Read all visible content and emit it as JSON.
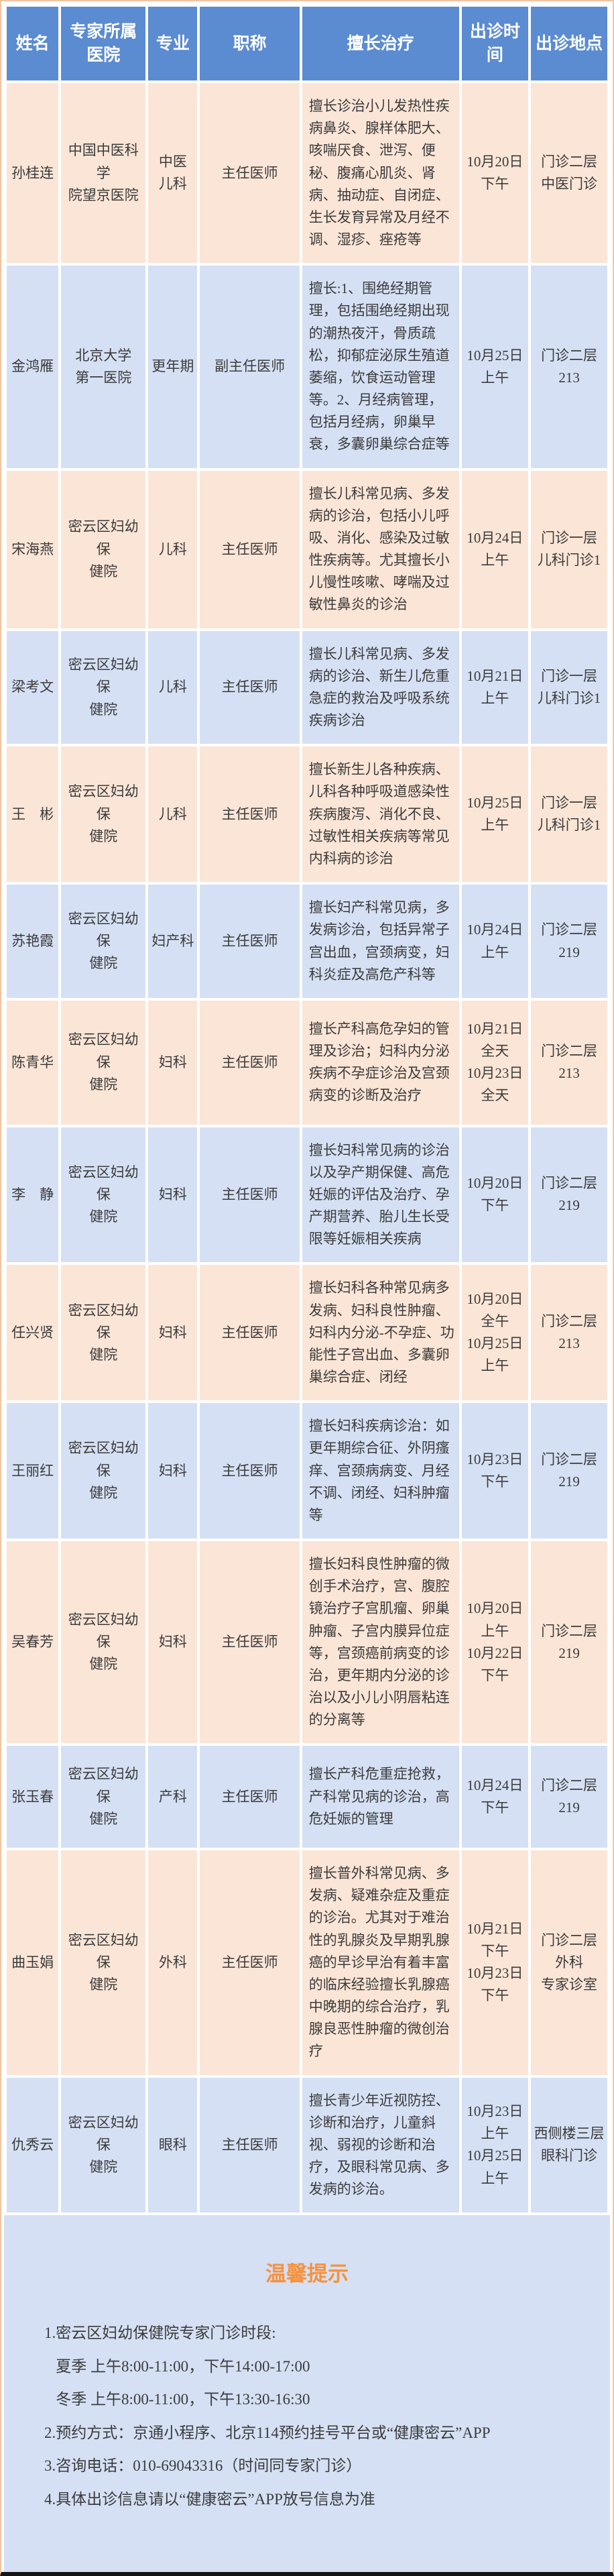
{
  "table": {
    "columns": [
      "姓名",
      "专家所属医院",
      "专业",
      "职称",
      "擅长治疗",
      "出诊时间",
      "出诊地点"
    ],
    "rows": [
      {
        "name": "孙桂连",
        "hospital": "中国中医科学\n院望京医院",
        "specialty": "中医\n儿科",
        "title": "主任医师",
        "expertise": "擅长诊治小儿发热性疾病鼻炎、腺样体肥大、咳喘厌食、泄泻、便秘、腹痛心肌炎、肾病、抽动症、自闭症、生长发育异常及月经不调、湿疹、痤疮等",
        "time": "10月20日\n下午",
        "location": "门诊二层\n中医门诊"
      },
      {
        "name": "金鸿雁",
        "hospital": "北京大学\n第一医院",
        "specialty": "更年期",
        "title": "副主任医师",
        "expertise": "擅长:1、围绝经期管理，包括围绝经期出现的潮热夜汗，骨质疏松，抑郁症泌尿生殖道萎缩，饮食运动管理等。2、月经病管理，包括月经病，卵巢早衰，多囊卵巢综合症等",
        "time": "10月25日\n上午",
        "location": "门诊二层\n213"
      },
      {
        "name": "宋海燕",
        "hospital": "密云区妇幼保\n健院",
        "specialty": "儿科",
        "title": "主任医师",
        "expertise": "擅长儿科常见病、多发病的诊治，包括小儿呼吸、消化、感染及过敏性疾病等。尤其擅长小儿慢性咳嗽、哮喘及过敏性鼻炎的诊治",
        "time": "10月24日\n上午",
        "location": "门诊一层\n儿科门诊1"
      },
      {
        "name": "梁考文",
        "hospital": "密云区妇幼保\n健院",
        "specialty": "儿科",
        "title": "主任医师",
        "expertise": "擅长儿科常见病、多发病的诊治、新生儿危重急症的救治及呼吸系统疾病诊治",
        "time": "10月21日\n上午",
        "location": "门诊一层\n儿科门诊1"
      },
      {
        "name": "王　彬",
        "hospital": "密云区妇幼保\n健院",
        "specialty": "儿科",
        "title": "主任医师",
        "expertise": "擅长新生儿各种疾病、儿科各种呼吸道感染性疾病腹泻、消化不良、过敏性相关疾病等常见内科病的诊治",
        "time": "10月25日上午",
        "location": "门诊一层\n儿科门诊1"
      },
      {
        "name": "苏艳霞",
        "hospital": "密云区妇幼保\n健院",
        "specialty": "妇产科",
        "title": "主任医师",
        "expertise": "擅长妇产科常见病，多发病诊治，包括异常子宫出血，宫颈病变，妇科炎症及高危产科等",
        "time": "10月24日\n上午",
        "location": "门诊二层\n219"
      },
      {
        "name": "陈青华",
        "hospital": "密云区妇幼保\n健院",
        "specialty": "妇科",
        "title": "主任医师",
        "expertise": "擅长产科高危孕妇的管理及诊治；妇科内分泌疾病不孕症诊治及宫颈病变的诊断及治疗",
        "time": "10月21日\n全天\n10月23日\n全天",
        "location": "门诊二层\n213"
      },
      {
        "name": "李　静",
        "hospital": "密云区妇幼保\n健院",
        "specialty": "妇科",
        "title": "主任医师",
        "expertise": "擅长妇科常见病的诊治以及孕产期保健、高危妊娠的评估及治疗、孕产期营养、胎儿生长受限等妊娠相关疾病",
        "time": "10月20日\n下午",
        "location": "门诊二层\n219"
      },
      {
        "name": "任兴贤",
        "hospital": "密云区妇幼保\n健院",
        "specialty": "妇科",
        "title": "主任医师",
        "expertise": "擅长妇科各种常见病多发病、妇科良性肿瘤、妇科内分泌-不孕症、功能性子宫出血、多囊卵巢综合症、闭经",
        "time": "10月20日\n全午\n10月25日\n上午",
        "location": "门诊二层\n213"
      },
      {
        "name": "王丽红",
        "hospital": "密云区妇幼保\n健院",
        "specialty": "妇科",
        "title": "主任医师",
        "expertise": "擅长妇科疾病诊治：如更年期综合征、外阴瘙痒、宫颈病病变、月经不调、闭经、妇科肿瘤等",
        "time": "10月23日\n下午",
        "location": "门诊二层\n219"
      },
      {
        "name": "吴春芳",
        "hospital": "密云区妇幼保\n健院",
        "specialty": "妇科",
        "title": "主任医师",
        "expertise": "擅长妇科良性肿瘤的微创手术治疗，宫、腹腔镜治疗子宫肌瘤、卵巢肿瘤、子宫内膜异位症等，宫颈癌前病变的诊治，更年期内分泌的诊治以及小儿小阴唇粘连的分离等",
        "time": "10月20日\n上午\n10月22日\n下午",
        "location": "门诊二层\n219"
      },
      {
        "name": "张玉春",
        "hospital": "密云区妇幼保\n健院",
        "specialty": "产科",
        "title": "主任医师",
        "expertise": "擅长产科危重症抢救，产科常见病的诊治，高危妊娠的管理",
        "time": "10月24日\n下午",
        "location": "门诊二层\n219"
      },
      {
        "name": "曲玉娟",
        "hospital": "密云区妇幼保\n健院",
        "specialty": "外科",
        "title": "主任医师",
        "expertise": "擅长普外科常见病、多发病、疑难杂症及重症的诊治。尤其对于难治性的乳腺炎及早期乳腺癌的早诊早治有着丰富的临床经验擅长乳腺癌中晚期的综合治疗，乳腺良恶性肿瘤的微创治疗",
        "time": "10月21日\n下午\n10月23日\n下午",
        "location": "门诊二层\n外科\n专家诊室"
      },
      {
        "name": "仇秀云",
        "hospital": "密云区妇幼保\n健院",
        "specialty": "眼科",
        "title": "主任医师",
        "expertise": "擅长青少年近视防控、诊断和治疗，儿童斜视、弱视的诊断和治疗，及眼科常见病、多发病的诊治。",
        "time": "10月23日\n上午\n10月25日\n上午",
        "location": "西侧楼三层\n眼科门诊"
      }
    ]
  },
  "footer": {
    "title": "温馨提示",
    "notes": "1.密云区妇幼保健院专家门诊时段:\n   夏季 上午8:00-11:00，下午14:00-17:00\n   冬季 上午8:00-11:00，下午13:30-16:30\n2.预约方式：京通小程序、北京114预约挂号平台或“健康密云”APP\n3.咨询电话：010-69043316（时间同专家门诊）\n4.具体出诊信息请以“健康密云”APP放号信息为准"
  },
  "colors": {
    "header_bg": "#5b8bd0",
    "row_peach": "#fbe5d6",
    "row_blue": "#d5e0f4",
    "tips_title": "#f7913d",
    "text": "#3b3b3b"
  }
}
